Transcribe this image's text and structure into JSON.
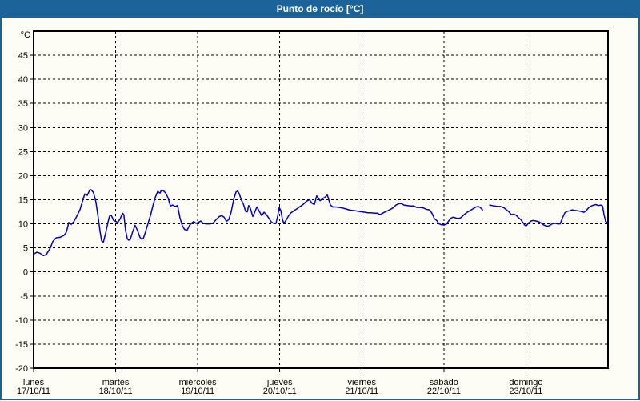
{
  "window": {
    "title": "Punto de rocío [°C]"
  },
  "colors": {
    "titlebar_bg": "#1b6399",
    "title_text": "#ffffff",
    "frame_border": "#20608c",
    "page_background": "#fdfdf6",
    "plot_border": "#000000",
    "grid": "#000000",
    "line": "#0000bb"
  },
  "chart_data": {
    "type": "line",
    "title": "Punto de rocío [°C]",
    "grid": "dashed",
    "legend": "none",
    "y_axis": {
      "unit_label": "°C",
      "min": -20,
      "max": 50,
      "tick_step": 5,
      "tick_labels": [
        -20,
        -15,
        -10,
        -5,
        0,
        5,
        10,
        15,
        20,
        25,
        30,
        35,
        40,
        45
      ]
    },
    "x_axis": {
      "total_hours": 168,
      "day_tick_hours": [
        0,
        24,
        48,
        72,
        96,
        120,
        144
      ],
      "days": [
        {
          "name": "lunes",
          "date": "17/10/11"
        },
        {
          "name": "martes",
          "date": "18/10/11"
        },
        {
          "name": "miércoles",
          "date": "19/10/11"
        },
        {
          "name": "jueves",
          "date": "20/10/11"
        },
        {
          "name": "viernes",
          "date": "21/10/11"
        },
        {
          "name": "sábado",
          "date": "22/10/11"
        },
        {
          "name": "domingo",
          "date": "23/10/11"
        }
      ]
    },
    "series": [
      {
        "name": "Punto de rocío",
        "color": "#0000bb",
        "points": [
          [
            0.0,
            3.7
          ],
          [
            0.9,
            4.1
          ],
          [
            1.9,
            3.9
          ],
          [
            2.8,
            3.4
          ],
          [
            3.7,
            3.6
          ],
          [
            4.9,
            5.0
          ],
          [
            5.6,
            6.3
          ],
          [
            6.6,
            7.1
          ],
          [
            7.7,
            7.2
          ],
          [
            8.9,
            7.6
          ],
          [
            9.6,
            8.3
          ],
          [
            10.3,
            10.3
          ],
          [
            11.0,
            9.9
          ],
          [
            11.7,
            10.4
          ],
          [
            12.6,
            11.5
          ],
          [
            13.6,
            13.0
          ],
          [
            14.5,
            15.2
          ],
          [
            15.0,
            16.2
          ],
          [
            15.7,
            15.9
          ],
          [
            16.4,
            17.0
          ],
          [
            16.8,
            17.1
          ],
          [
            17.5,
            16.5
          ],
          [
            18.2,
            14.6
          ],
          [
            19.0,
            10.8
          ],
          [
            19.4,
            8.6
          ],
          [
            19.9,
            6.5
          ],
          [
            20.4,
            6.2
          ],
          [
            21.1,
            8.2
          ],
          [
            21.8,
            10.5
          ],
          [
            22.2,
            11.6
          ],
          [
            22.7,
            11.8
          ],
          [
            23.4,
            10.7
          ],
          [
            24.1,
            10.5
          ],
          [
            24.6,
            10.3
          ],
          [
            25.3,
            11.0
          ],
          [
            26.0,
            12.2
          ],
          [
            26.4,
            11.9
          ],
          [
            26.9,
            8.6
          ],
          [
            27.4,
            6.9
          ],
          [
            27.8,
            6.6
          ],
          [
            28.3,
            6.8
          ],
          [
            29.0,
            8.4
          ],
          [
            29.7,
            9.7
          ],
          [
            30.4,
            8.6
          ],
          [
            31.1,
            7.2
          ],
          [
            31.6,
            6.8
          ],
          [
            32.1,
            7.0
          ],
          [
            32.8,
            8.5
          ],
          [
            33.5,
            10.2
          ],
          [
            34.2,
            11.8
          ],
          [
            34.9,
            13.8
          ],
          [
            35.6,
            15.5
          ],
          [
            36.3,
            16.7
          ],
          [
            37.0,
            16.4
          ],
          [
            37.4,
            17.0
          ],
          [
            38.1,
            16.8
          ],
          [
            38.6,
            16.4
          ],
          [
            39.3,
            15.4
          ],
          [
            40.0,
            13.7
          ],
          [
            40.7,
            13.9
          ],
          [
            41.4,
            13.6
          ],
          [
            42.1,
            13.8
          ],
          [
            42.8,
            11.3
          ],
          [
            43.5,
            9.6
          ],
          [
            44.2,
            8.8
          ],
          [
            44.9,
            8.7
          ],
          [
            45.6,
            9.7
          ],
          [
            46.3,
            10.2
          ],
          [
            46.8,
            10.5
          ],
          [
            47.5,
            10.1
          ],
          [
            48.2,
            10.3
          ],
          [
            48.9,
            10.6
          ],
          [
            49.6,
            10.1
          ],
          [
            50.5,
            10.0
          ],
          [
            51.5,
            10.0
          ],
          [
            52.4,
            10.1
          ],
          [
            53.4,
            10.9
          ],
          [
            54.3,
            11.5
          ],
          [
            55.0,
            11.7
          ],
          [
            55.7,
            11.4
          ],
          [
            56.4,
            10.5
          ],
          [
            57.1,
            10.9
          ],
          [
            57.8,
            12.5
          ],
          [
            58.5,
            15.0
          ],
          [
            59.2,
            16.6
          ],
          [
            59.7,
            16.8
          ],
          [
            60.1,
            16.3
          ],
          [
            60.8,
            14.9
          ],
          [
            61.3,
            14.2
          ],
          [
            62.0,
            12.6
          ],
          [
            62.5,
            12.5
          ],
          [
            62.9,
            13.8
          ],
          [
            63.4,
            13.2
          ],
          [
            64.1,
            11.5
          ],
          [
            64.6,
            12.3
          ],
          [
            65.3,
            13.5
          ],
          [
            66.0,
            12.6
          ],
          [
            66.7,
            11.7
          ],
          [
            67.4,
            12.4
          ],
          [
            68.1,
            11.9
          ],
          [
            68.8,
            11.2
          ],
          [
            69.5,
            10.4
          ],
          [
            70.2,
            10.1
          ],
          [
            70.9,
            10.1
          ],
          [
            71.4,
            11.7
          ],
          [
            71.8,
            13.4
          ],
          [
            72.3,
            12.8
          ],
          [
            72.8,
            10.9
          ],
          [
            73.2,
            10.1
          ],
          [
            73.9,
            10.8
          ],
          [
            74.6,
            11.7
          ],
          [
            75.3,
            12.3
          ],
          [
            76.3,
            12.8
          ],
          [
            77.0,
            13.1
          ],
          [
            77.7,
            13.5
          ],
          [
            78.4,
            13.8
          ],
          [
            79.1,
            14.2
          ],
          [
            79.8,
            14.7
          ],
          [
            80.7,
            15.0
          ],
          [
            81.4,
            14.3
          ],
          [
            82.1,
            14.0
          ],
          [
            82.8,
            15.8
          ],
          [
            83.8,
            14.8
          ],
          [
            84.5,
            15.2
          ],
          [
            85.2,
            15.5
          ],
          [
            85.9,
            16.0
          ],
          [
            86.8,
            13.9
          ],
          [
            87.5,
            13.5
          ],
          [
            88.4,
            13.5
          ],
          [
            89.4,
            13.4
          ],
          [
            90.3,
            13.3
          ],
          [
            91.3,
            13.1
          ],
          [
            92.2,
            12.9
          ],
          [
            93.1,
            12.8
          ],
          [
            94.1,
            12.7
          ],
          [
            95.0,
            12.6
          ],
          [
            95.9,
            12.5
          ],
          [
            96.9,
            12.4
          ],
          [
            97.8,
            12.3
          ],
          [
            98.7,
            12.3
          ],
          [
            99.7,
            12.2
          ],
          [
            100.6,
            12.2
          ],
          [
            101.3,
            11.9
          ],
          [
            102.3,
            12.3
          ],
          [
            103.2,
            12.6
          ],
          [
            104.1,
            12.9
          ],
          [
            105.1,
            13.3
          ],
          [
            106.0,
            13.9
          ],
          [
            106.9,
            14.2
          ],
          [
            107.6,
            14.2
          ],
          [
            108.3,
            13.9
          ],
          [
            109.3,
            13.8
          ],
          [
            110.2,
            13.7
          ],
          [
            111.2,
            13.7
          ],
          [
            112.1,
            13.4
          ],
          [
            113.0,
            13.4
          ],
          [
            114.0,
            13.3
          ],
          [
            114.9,
            13.0
          ],
          [
            115.8,
            12.9
          ],
          [
            116.5,
            12.2
          ],
          [
            117.2,
            11.1
          ],
          [
            117.9,
            10.7
          ],
          [
            118.6,
            10.0
          ],
          [
            119.3,
            9.8
          ],
          [
            120.0,
            9.8
          ],
          [
            120.7,
            9.9
          ],
          [
            121.4,
            10.6
          ],
          [
            122.1,
            11.2
          ],
          [
            122.8,
            11.4
          ],
          [
            123.6,
            11.2
          ],
          [
            124.3,
            11.1
          ],
          [
            125.0,
            11.3
          ],
          [
            125.9,
            11.9
          ],
          [
            126.8,
            12.4
          ],
          [
            127.8,
            12.8
          ],
          [
            128.7,
            13.2
          ],
          [
            129.4,
            13.5
          ],
          [
            130.1,
            13.6
          ],
          [
            130.6,
            13.4
          ],
          [
            131.3,
            12.9
          ],
          [
            132.4,
            null
          ],
          [
            133.4,
            13.9
          ],
          [
            134.1,
            13.8
          ],
          [
            134.8,
            13.7
          ],
          [
            135.7,
            13.6
          ],
          [
            136.6,
            13.6
          ],
          [
            137.6,
            13.3
          ],
          [
            138.3,
            12.9
          ],
          [
            139.0,
            12.5
          ],
          [
            139.7,
            11.9
          ],
          [
            140.4,
            12.0
          ],
          [
            141.1,
            11.8
          ],
          [
            141.8,
            11.3
          ],
          [
            142.5,
            10.9
          ],
          [
            143.2,
            10.2
          ],
          [
            143.7,
            9.7
          ],
          [
            144.1,
            9.6
          ],
          [
            144.8,
            10.2
          ],
          [
            145.5,
            10.6
          ],
          [
            146.2,
            10.7
          ],
          [
            146.9,
            10.6
          ],
          [
            147.6,
            10.5
          ],
          [
            148.4,
            10.2
          ],
          [
            149.1,
            9.8
          ],
          [
            149.8,
            9.6
          ],
          [
            150.5,
            9.5
          ],
          [
            151.2,
            9.8
          ],
          [
            151.9,
            10.1
          ],
          [
            152.6,
            10.1
          ],
          [
            153.3,
            10.0
          ],
          [
            154.0,
            10.0
          ],
          [
            154.7,
            11.3
          ],
          [
            155.4,
            12.3
          ],
          [
            156.1,
            12.6
          ],
          [
            156.8,
            12.7
          ],
          [
            157.5,
            12.9
          ],
          [
            158.2,
            12.8
          ],
          [
            159.1,
            12.7
          ],
          [
            160.0,
            12.6
          ],
          [
            161.0,
            12.4
          ],
          [
            161.7,
            12.8
          ],
          [
            162.4,
            13.4
          ],
          [
            163.1,
            13.7
          ],
          [
            163.8,
            13.9
          ],
          [
            164.5,
            14.0
          ],
          [
            165.2,
            13.8
          ],
          [
            165.9,
            13.9
          ],
          [
            166.4,
            13.7
          ],
          [
            166.8,
            12.0
          ],
          [
            167.3,
            10.5
          ],
          [
            168.0,
            10.2
          ]
        ]
      }
    ]
  }
}
